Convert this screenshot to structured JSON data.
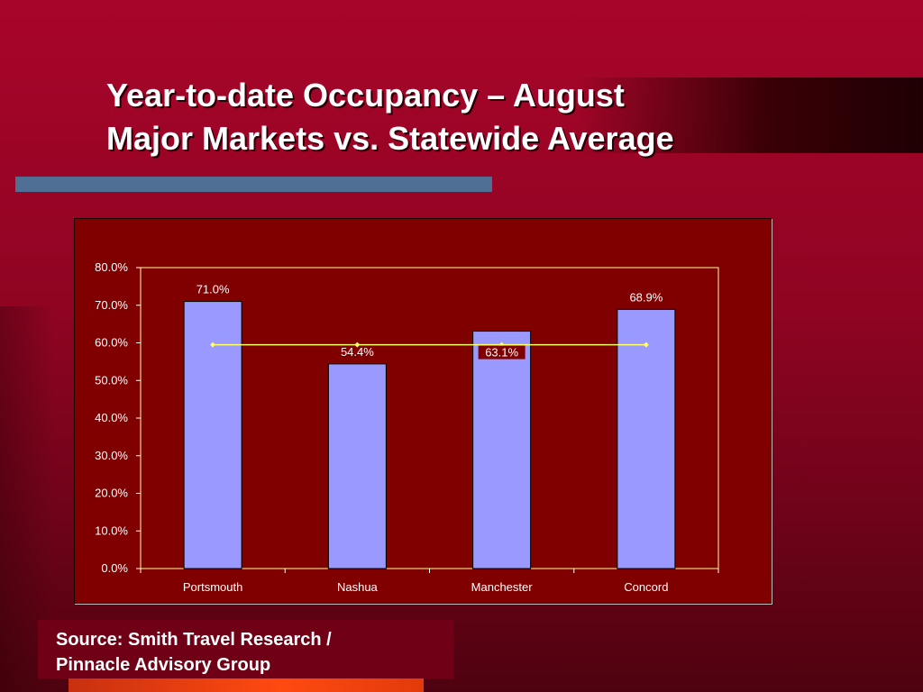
{
  "title": {
    "line1": "Year-to-date Occupancy – August",
    "line2": "Major Markets vs. Statewide Average"
  },
  "source": {
    "line1": "Source: Smith Travel Research /",
    "line2": "Pinnacle Advisory Group"
  },
  "colors": {
    "bar": "#9999ff",
    "average_line": "#ffff66",
    "plot_background": "#800000",
    "axis": "#ffff99"
  },
  "chart_data": {
    "type": "bar",
    "categories": [
      "Portsmouth",
      "Nashua",
      "Manchester",
      "Concord"
    ],
    "series": [
      {
        "values": [
          71.0,
          54.4,
          63.1,
          68.9
        ],
        "labels": [
          "71.0%",
          "54.4%",
          "63.1%",
          "68.9%"
        ],
        "kind": "bar"
      },
      {
        "values": [
          59.5,
          59.5,
          59.5,
          59.5
        ],
        "kind": "line-with-markers"
      }
    ],
    "ylim": [
      0,
      80
    ],
    "yticks": [
      "0.0%",
      "10.0%",
      "20.0%",
      "30.0%",
      "40.0%",
      "50.0%",
      "60.0%",
      "70.0%",
      "80.0%"
    ],
    "xlabel": "",
    "ylabel": "",
    "grid": false,
    "legend": "none"
  }
}
